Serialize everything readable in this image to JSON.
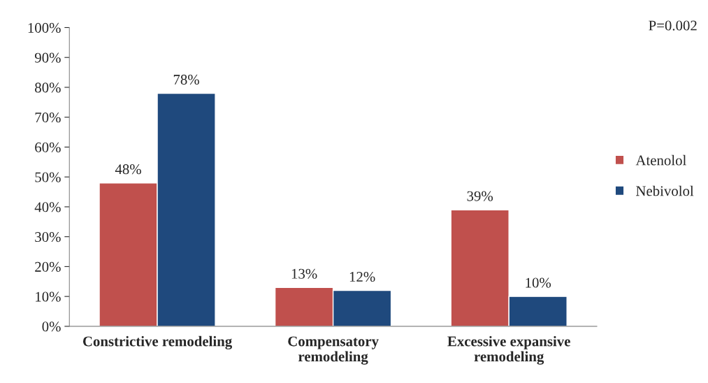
{
  "chart_data": {
    "type": "bar",
    "categories": [
      "Constrictive remodeling",
      "Compensatory\nremodeling",
      "Excessive expansive\nremodeling"
    ],
    "series": [
      {
        "name": "Atenolol",
        "color": "#c0504d",
        "values": [
          48,
          13,
          39
        ],
        "value_labels": [
          "48%",
          "13%",
          "39%"
        ]
      },
      {
        "name": "Nebivolol",
        "color": "#1f497d",
        "values": [
          78,
          12,
          10
        ],
        "value_labels": [
          "78%",
          "12%",
          "10%"
        ]
      }
    ],
    "ylim": [
      0,
      100
    ],
    "yticks": [
      {
        "value": 0,
        "label": "0%"
      },
      {
        "value": 10,
        "label": "10%"
      },
      {
        "value": 20,
        "label": "20%"
      },
      {
        "value": 30,
        "label": "30%"
      },
      {
        "value": 40,
        "label": "40%"
      },
      {
        "value": 50,
        "label": "50%"
      },
      {
        "value": 60,
        "label": "60%"
      },
      {
        "value": 70,
        "label": "70%"
      },
      {
        "value": 80,
        "label": "80%"
      },
      {
        "value": 90,
        "label": "90%"
      },
      {
        "value": 100,
        "label": "100%"
      }
    ],
    "annotations": [
      "P=0.002"
    ],
    "legend": "right",
    "grid": false
  }
}
